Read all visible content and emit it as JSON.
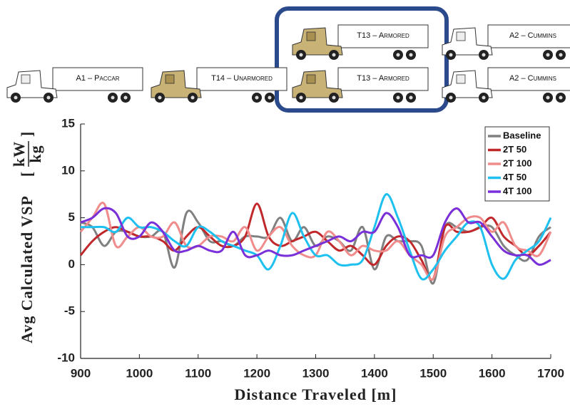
{
  "chart_data": {
    "type": "line",
    "annotations": [
      "T13 – Armored",
      "A2 – Cummins",
      "A1 – Paccar",
      "T14 – Unarmored",
      "T13 – Armored",
      "A2 – Cummins"
    ],
    "xlabel": "Distance Traveled [m]",
    "ylabel": "Avg Calculated VSP",
    "ylabel_unit": {
      "num": "kW",
      "den": "kg"
    },
    "x": [
      900,
      920,
      940,
      960,
      980,
      1000,
      1020,
      1040,
      1060,
      1080,
      1100,
      1120,
      1140,
      1160,
      1180,
      1200,
      1220,
      1240,
      1260,
      1280,
      1300,
      1320,
      1340,
      1360,
      1380,
      1400,
      1420,
      1440,
      1460,
      1480,
      1500,
      1520,
      1540,
      1560,
      1580,
      1600,
      1620,
      1640,
      1660,
      1680,
      1700
    ],
    "series": [
      {
        "name": "Baseline",
        "color": "#808080",
        "values": [
          4.5,
          4,
          2,
          3.5,
          3.5,
          3,
          3,
          3.5,
          -0.3,
          5.5,
          4.5,
          2.5,
          2.5,
          2,
          3,
          3,
          3,
          5,
          2.5,
          4,
          2,
          3,
          2.5,
          1.5,
          4,
          -0.5,
          3,
          2.5,
          2.5,
          2,
          -2,
          4,
          4,
          3.5,
          4,
          4,
          2,
          1,
          0.5,
          3,
          4
        ]
      },
      {
        "name": "2T 50",
        "color": "#c0282b",
        "values": [
          1,
          2.5,
          3.5,
          4,
          3.5,
          3,
          3,
          2.5,
          1.5,
          3,
          4,
          3,
          2,
          2,
          3,
          6.5,
          3,
          2,
          2.5,
          3,
          3.5,
          2.5,
          1.5,
          2,
          1,
          0,
          2,
          3,
          2.5,
          0.5,
          -1.5,
          4,
          3.5,
          3.5,
          4,
          5,
          3,
          2,
          1,
          2,
          3.5
        ]
      },
      {
        "name": "2T 100",
        "color": "#f08c8c",
        "values": [
          3.5,
          5,
          6.5,
          2,
          3,
          4,
          3,
          3,
          4.5,
          2,
          2,
          3,
          3,
          2.5,
          4,
          1.5,
          3,
          4,
          2,
          1,
          1,
          3.5,
          2.5,
          1,
          2,
          1.5,
          1.5,
          2.5,
          1,
          0,
          -1.5,
          3,
          4,
          5,
          5,
          3.5,
          4.5,
          2,
          1.5,
          1,
          3.5
        ]
      },
      {
        "name": "4T 50",
        "color": "#1ec0f0",
        "values": [
          4,
          4,
          4,
          3.5,
          5,
          4,
          4,
          3.5,
          2.5,
          2,
          4,
          3.5,
          2.5,
          2,
          1.5,
          1,
          -0.5,
          2,
          5.5,
          3,
          1,
          1,
          0,
          0,
          0.5,
          4,
          7.5,
          5,
          1.5,
          -1.5,
          -0.5,
          1.5,
          3,
          4.5,
          4,
          0,
          -1.5,
          0.5,
          1.5,
          2.5,
          5
        ]
      },
      {
        "name": "4T 100",
        "color": "#7a30d8",
        "values": [
          4.5,
          5,
          6,
          5.5,
          3,
          3,
          4.5,
          3.5,
          1.5,
          1.5,
          2,
          1.5,
          1.5,
          3.5,
          1,
          1,
          1.5,
          1,
          1,
          1.5,
          2,
          2.5,
          3,
          2.5,
          3.5,
          3.5,
          5.5,
          4,
          1,
          1,
          1,
          4.5,
          6,
          4.5,
          4.5,
          3,
          1.5,
          1,
          1,
          0,
          0.5
        ]
      }
    ],
    "xlim": [
      900,
      1700
    ],
    "xticks": [
      900,
      1000,
      1100,
      1200,
      1300,
      1400,
      1500,
      1600,
      1700
    ],
    "ylim": [
      -10,
      15
    ],
    "yticks": [
      -10,
      -5,
      0,
      5,
      10,
      15
    ],
    "legend": "upper right"
  }
}
